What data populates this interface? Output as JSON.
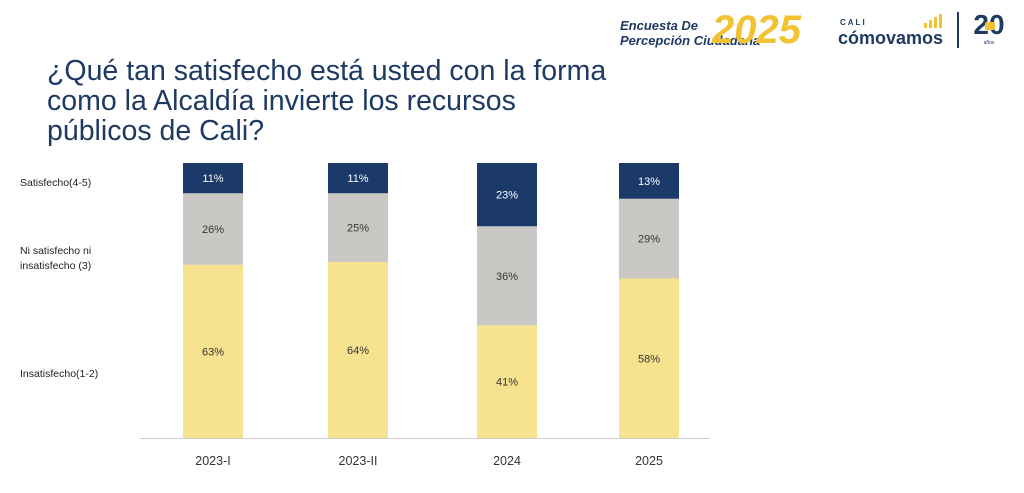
{
  "header": {
    "title_lines": [
      "¿Qué tan satisfecho está usted con la forma",
      "como la Alcaldía invierte los recursos",
      "públicos de Cali?"
    ],
    "logo_encuesta": {
      "line1": "Encuesta De",
      "line2": "Percepción Ciudadana",
      "year": "2025"
    },
    "logo_cali": {
      "small": "CALI",
      "big": "cómovamos"
    },
    "logo_20": {
      "number": "20",
      "subtitle": "años"
    }
  },
  "row_labels": {
    "satisfecho": [
      "Satisfecho(4-5)"
    ],
    "ni": [
      "Ni satisfecho ni",
      "insatisfecho (3)"
    ],
    "insatisfecho": [
      "Insatisfecho(1-2)"
    ]
  },
  "colors": {
    "satisfecho": "#1b3a69",
    "ni": "#c9c8c4",
    "insatisfecho": "#f7e28f",
    "title": "#1e3a63",
    "axis": "#cccccc",
    "logo_yellow": "#f1c232"
  },
  "chart_data": {
    "type": "bar",
    "stacked": true,
    "title": "¿Qué tan satisfecho está usted con la forma como la Alcaldía invierte los recursos públicos de Cali?",
    "categories": [
      "2023-I",
      "2023-II",
      "2024",
      "2025"
    ],
    "series": [
      {
        "name": "Insatisfecho(1-2)",
        "values": [
          63,
          64,
          41,
          58
        ],
        "labels": [
          "63%",
          "64%",
          "41%",
          "58%"
        ]
      },
      {
        "name": "Ni satisfecho ni insatisfecho (3)",
        "values": [
          26,
          25,
          36,
          29
        ],
        "labels": [
          "26%",
          "25%",
          "36%",
          "29%"
        ]
      },
      {
        "name": "Satisfecho(4-5)",
        "values": [
          11,
          11,
          23,
          13
        ],
        "labels": [
          "11%",
          "11%",
          "23%",
          "13%"
        ]
      }
    ],
    "ylim": [
      0,
      100
    ],
    "xlabel": "",
    "ylabel": ""
  }
}
